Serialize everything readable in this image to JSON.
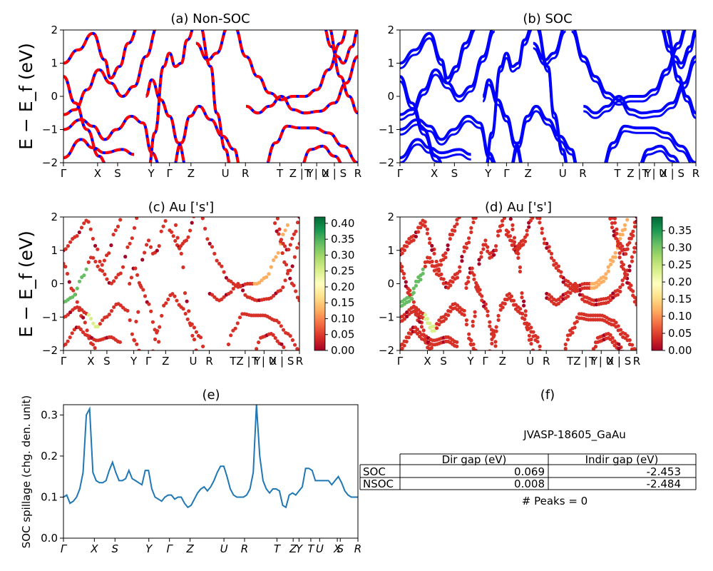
{
  "panels": {
    "a": {
      "title": "(a) Non-SOC"
    },
    "b": {
      "title": "(b) SOC"
    },
    "c": {
      "title": "(c)  Au ['s']"
    },
    "d": {
      "title": "(d) Au ['s']"
    },
    "e": {
      "title": "(e)"
    },
    "f": {
      "title": "(f)"
    }
  },
  "band_ylabel": "E − E_f (eV)",
  "band_yticks": [
    "2",
    "1",
    "0",
    "−1",
    "−2"
  ],
  "kpath_labels": [
    "Γ",
    "X",
    "S",
    "Y",
    "Γ",
    "Z",
    "U",
    "R",
    "T",
    "Z | Y",
    "T | U",
    "X | S",
    "R"
  ],
  "kpath_labels_proj": [
    "Γ",
    "X",
    "S",
    "Y",
    "Γ",
    "Z",
    "U",
    "R",
    "TZ | Y",
    "T | U",
    "X | S",
    "R"
  ],
  "kpath_labels_e": [
    "Γ",
    "X",
    "S",
    "Y",
    "Γ",
    "Z",
    "U",
    "R",
    "T",
    "Z",
    "Y",
    "T",
    "U",
    "X",
    "S",
    "R"
  ],
  "colorbars": {
    "c": {
      "ticks": [
        "0.40",
        "0.35",
        "0.30",
        "0.25",
        "0.20",
        "0.15",
        "0.10",
        "0.05",
        "0.00"
      ],
      "max": 0.42
    },
    "d": {
      "ticks": [
        "0.35",
        "0.30",
        "0.25",
        "0.20",
        "0.15",
        "0.10",
        "0.05",
        "0.00"
      ],
      "max": 0.39
    }
  },
  "spillage": {
    "ylabel": "SOC spillage (chg. den. unit)",
    "yticks": [
      "0.3",
      "0.2",
      "0.1",
      "0.0"
    ]
  },
  "info": {
    "material": "JVASP-18605_GaAu",
    "col_dir": "Dir gap (eV)",
    "col_indir": "Indir gap (eV)",
    "rows": [
      {
        "label": "SOC",
        "dir": "0.069",
        "indir": "-2.453"
      },
      {
        "label": "NSOC",
        "dir": "0.008",
        "indir": "-2.484"
      }
    ],
    "peaks": "# Peaks = 0"
  },
  "colors": {
    "soc_band": "#0000ff",
    "nonsoc_band": "#ff0000",
    "spillage_line": "#1f77b4"
  },
  "chart_data": [
    {
      "type": "line",
      "title": "(a) Non-SOC",
      "ylabel": "E − E_f (eV)",
      "ylim": [
        -2,
        2
      ],
      "x_categories": [
        "Γ",
        "X",
        "S",
        "Y",
        "Γ",
        "Z",
        "U",
        "R",
        "T",
        "Z | Y",
        "T | U",
        "X | S",
        "R"
      ],
      "note": "electronic band structure, red/blue dashed bands (spin up / down)"
    },
    {
      "type": "line",
      "title": "(b) SOC",
      "ylabel": "E − E_f (eV)",
      "ylim": [
        -2,
        2
      ],
      "x_categories": [
        "Γ",
        "X",
        "S",
        "Y",
        "Γ",
        "Z",
        "U",
        "R",
        "T",
        "Z | Y",
        "T | U",
        "X | S",
        "R"
      ]
    },
    {
      "type": "scatter",
      "title": "(c)  Au ['s']",
      "ylim": [
        -2,
        2
      ],
      "colorbar_range": [
        0.0,
        0.42
      ],
      "x_categories": [
        "Γ",
        "X",
        "S",
        "Y",
        "Γ",
        "Z",
        "U",
        "R",
        "TZ | Y",
        "T | U",
        "X | S",
        "R"
      ]
    },
    {
      "type": "scatter",
      "title": "(d) Au ['s']",
      "ylim": [
        -2,
        2
      ],
      "colorbar_range": [
        0.0,
        0.39
      ],
      "x_categories": [
        "Γ",
        "X",
        "S",
        "Y",
        "Γ",
        "Z",
        "U",
        "R",
        "TZ | Y",
        "T | U",
        "X | S",
        "R"
      ]
    },
    {
      "type": "line",
      "title": "(e)",
      "ylabel": "SOC spillage (chg. den. unit)",
      "ylim": [
        0.0,
        0.325
      ],
      "x": [
        0,
        0.5,
        1,
        1.5,
        2,
        2.5,
        3,
        3.5,
        4,
        4.5,
        5,
        5.5,
        6,
        6.5,
        7,
        7.5,
        8,
        8.5,
        9,
        9.5,
        10,
        10.5,
        11,
        11.5,
        12,
        12.5,
        13,
        13.5,
        14,
        14.5,
        15,
        15.5,
        16,
        16.5,
        17,
        17.5,
        18,
        18.5,
        19,
        19.5,
        20,
        20.5,
        21,
        21.5,
        22,
        22.5,
        23,
        23.5,
        24,
        24.5,
        25,
        25.5,
        26,
        26.5,
        27,
        27.5,
        28,
        28.5,
        29,
        29.5,
        30,
        30.5,
        31,
        31.5,
        32,
        32.5,
        33,
        33.5,
        34,
        34.5,
        35,
        35.5,
        36,
        36.5,
        37,
        37.5,
        38,
        38.5,
        39,
        39.5,
        40,
        40.5,
        41,
        41.5,
        42,
        42.5,
        43,
        43.5,
        44,
        44.5,
        45
      ],
      "y": [
        0.1,
        0.105,
        0.085,
        0.09,
        0.1,
        0.12,
        0.16,
        0.3,
        0.315,
        0.16,
        0.14,
        0.135,
        0.135,
        0.14,
        0.165,
        0.185,
        0.16,
        0.14,
        0.14,
        0.145,
        0.165,
        0.145,
        0.14,
        0.135,
        0.13,
        0.165,
        0.165,
        0.12,
        0.1,
        0.095,
        0.09,
        0.1,
        0.105,
        0.105,
        0.095,
        0.1,
        0.1,
        0.085,
        0.075,
        0.08,
        0.095,
        0.11,
        0.12,
        0.125,
        0.115,
        0.125,
        0.14,
        0.16,
        0.175,
        0.175,
        0.15,
        0.12,
        0.105,
        0.1,
        0.1,
        0.1,
        0.105,
        0.12,
        0.16,
        0.325,
        0.2,
        0.14,
        0.12,
        0.11,
        0.12,
        0.12,
        0.115,
        0.08,
        0.075,
        0.105,
        0.11,
        0.105,
        0.115,
        0.125,
        0.17,
        0.17,
        0.165,
        0.14,
        0.14,
        0.14,
        0.14,
        0.14,
        0.13,
        0.14,
        0.15,
        0.135,
        0.115,
        0.105,
        0.1,
        0.1,
        0.1
      ],
      "x_categories": [
        "Γ",
        "X",
        "S",
        "Y",
        "Γ",
        "Z",
        "U",
        "R",
        "T",
        "Z",
        "Y",
        "T",
        "U",
        "X",
        "S",
        "R"
      ]
    }
  ]
}
